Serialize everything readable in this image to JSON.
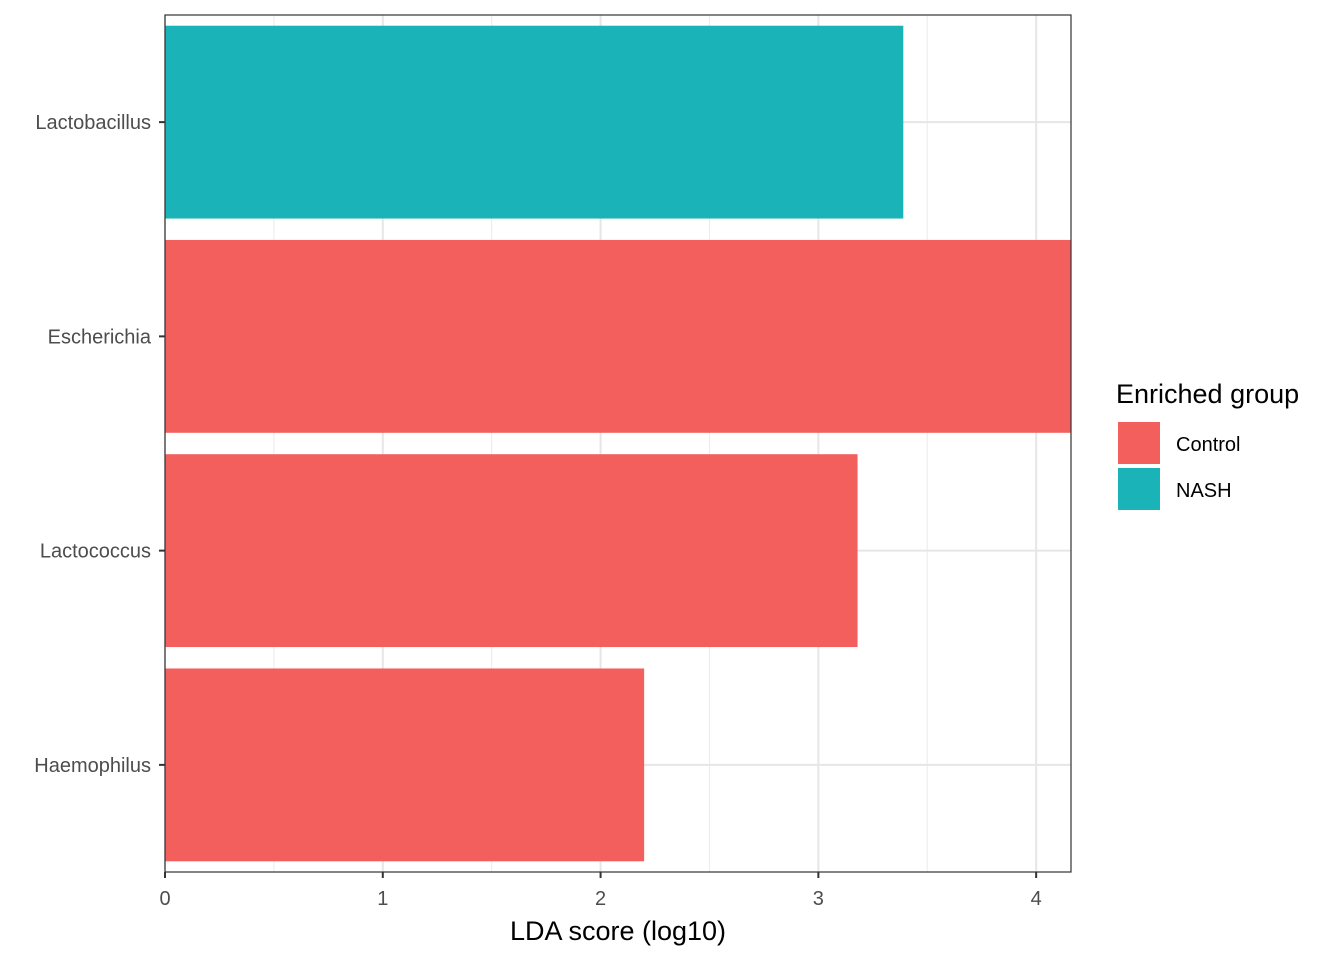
{
  "chart_data": {
    "type": "bar",
    "orientation": "horizontal",
    "categories": [
      "Lactobacillus",
      "Escherichia",
      "Lactococcus",
      "Haemophilus"
    ],
    "values": [
      3.39,
      4.16,
      3.18,
      2.2
    ],
    "groups": [
      "NASH",
      "Control",
      "Control",
      "Control"
    ],
    "xlabel": "LDA score (log10)",
    "ylabel": "",
    "xlim": [
      0,
      4.16
    ],
    "x_ticks": [
      0,
      1,
      2,
      3,
      4
    ],
    "grid": true,
    "legend": {
      "title": "Enriched group",
      "placement": "right",
      "entries": [
        {
          "label": "Control",
          "color": "#F25F5C"
        },
        {
          "label": "NASH",
          "color": "#1AB4B8"
        }
      ]
    },
    "colors": {
      "Control": "#F25F5C",
      "NASH": "#1AB4B8"
    }
  }
}
